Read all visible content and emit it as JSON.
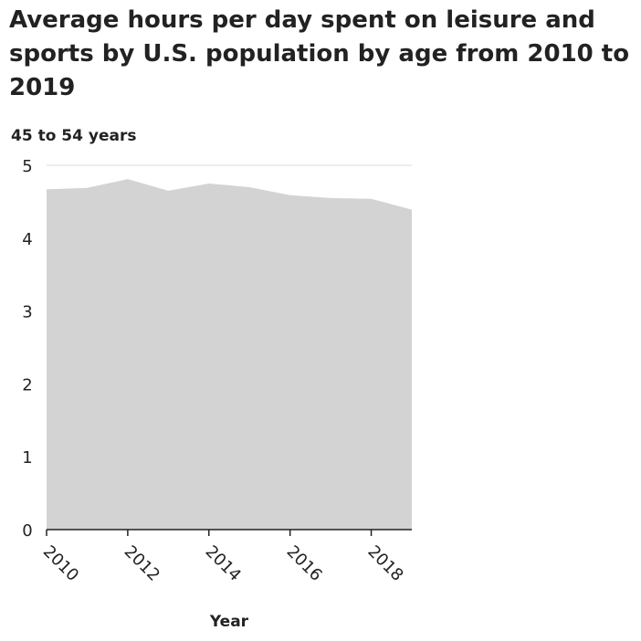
{
  "chart_data": {
    "type": "area",
    "title": "Average hours per day spent on leisure and sports by U.S. population by age from 2010 to 2019",
    "ylabel": "45 to 54 years",
    "xlabel": "Year",
    "x": [
      2010,
      2011,
      2012,
      2013,
      2014,
      2015,
      2016,
      2017,
      2018,
      2019
    ],
    "values": [
      4.67,
      4.69,
      4.81,
      4.65,
      4.75,
      4.7,
      4.59,
      4.55,
      4.54,
      4.39
    ],
    "xlim": [
      2010,
      2019
    ],
    "ylim": [
      0,
      5
    ],
    "xticks": [
      "2010",
      "2012",
      "2014",
      "2016",
      "2018"
    ],
    "yticks": [
      "0",
      "1",
      "2",
      "3",
      "4",
      "5"
    ],
    "grid": "horizontal",
    "fill_color": "#d3d3d3"
  }
}
